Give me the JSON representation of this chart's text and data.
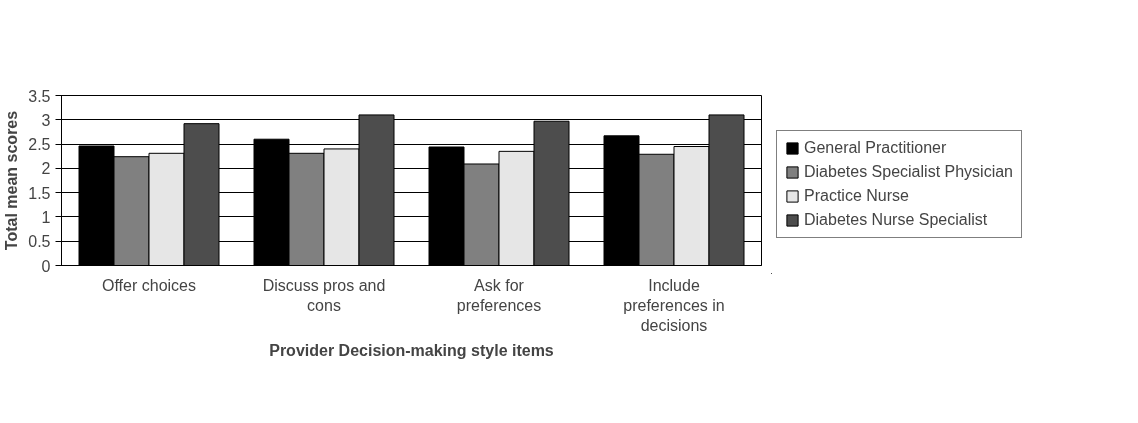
{
  "chart_data": {
    "type": "bar",
    "xlabel": "Provider Decision-making style items",
    "ylabel": "Total mean scores",
    "categories": [
      "Offer choices",
      "Discuss pros and cons",
      "Ask for preferences",
      "Include preferences in decisions"
    ],
    "series": [
      {
        "name": "General Practitioner",
        "color": "#000000",
        "values": [
          2.46,
          2.6,
          2.44,
          2.67
        ]
      },
      {
        "name": "Diabetes Specialist Physician",
        "color": "#808080",
        "values": [
          2.24,
          2.31,
          2.09,
          2.29
        ]
      },
      {
        "name": "Practice Nurse",
        "color": "#e6e6e6",
        "values": [
          2.31,
          2.4,
          2.35,
          2.45
        ]
      },
      {
        "name": "Diabetes Nurse Specialist",
        "color": "#4d4d4d",
        "values": [
          2.92,
          3.1,
          2.97,
          3.1
        ]
      }
    ],
    "ylim": [
      0,
      3.5
    ],
    "yticks": [
      0,
      0.5,
      1,
      1.5,
      2,
      2.5,
      3,
      3.5
    ],
    "grid": "y",
    "legend": "right"
  }
}
